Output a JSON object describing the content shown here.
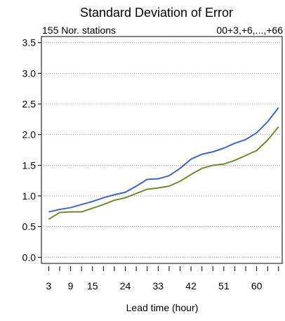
{
  "chart_data": {
    "type": "line",
    "title": "Standard Deviation of Error",
    "subtitle_left": "155 Nor. stations",
    "subtitle_right": "00+3,+6,...,+66",
    "xlabel": "Lead time (hour)",
    "ylabel": "",
    "xlim": [
      1,
      67
    ],
    "ylim": [
      -0.1,
      3.6
    ],
    "x_ticks": [
      3,
      6,
      9,
      12,
      15,
      18,
      21,
      24,
      27,
      30,
      33,
      36,
      39,
      42,
      45,
      48,
      51,
      54,
      57,
      60,
      63,
      66
    ],
    "x_tick_labels": [
      "3",
      "9",
      "15",
      "24",
      "33",
      "42",
      "51",
      "60"
    ],
    "x_tick_label_values": [
      3,
      9,
      15,
      24,
      33,
      42,
      51,
      60
    ],
    "y_ticks": [
      "0.0",
      "0.5",
      "1.0",
      "1.5",
      "2.0",
      "2.5",
      "3.0",
      "3.5"
    ],
    "y_tick_values": [
      0.0,
      0.5,
      1.0,
      1.5,
      2.0,
      2.5,
      3.0,
      3.5
    ],
    "grid": true,
    "x": [
      3,
      6,
      9,
      12,
      15,
      18,
      21,
      24,
      27,
      30,
      33,
      36,
      39,
      42,
      45,
      48,
      51,
      54,
      57,
      60,
      63,
      66
    ],
    "series": [
      {
        "color": "#3f62d6",
        "values": [
          0.74,
          0.78,
          0.81,
          0.86,
          0.91,
          0.97,
          1.02,
          1.06,
          1.16,
          1.27,
          1.28,
          1.33,
          1.45,
          1.6,
          1.68,
          1.72,
          1.78,
          1.86,
          1.92,
          2.03,
          2.21,
          2.44
        ]
      },
      {
        "color": "#6b8e23",
        "values": [
          0.62,
          0.73,
          0.74,
          0.74,
          0.8,
          0.86,
          0.93,
          0.97,
          1.04,
          1.11,
          1.13,
          1.16,
          1.24,
          1.35,
          1.45,
          1.5,
          1.52,
          1.58,
          1.66,
          1.74,
          1.91,
          2.13
        ]
      }
    ]
  }
}
